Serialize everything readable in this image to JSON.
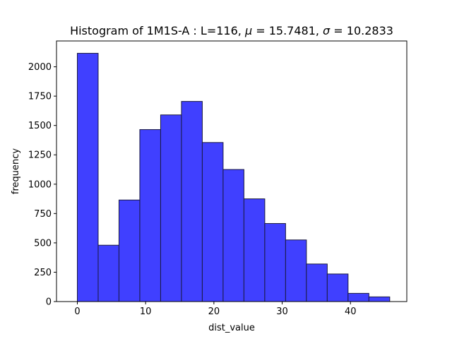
{
  "chart_data": {
    "type": "bar",
    "title_prefix": "Histogram of 1M1S-A : L=116, ",
    "title_mu": "μ",
    "title_mu_value": " = 15.7481, ",
    "title_sigma": "σ",
    "title_sigma_value": " = 10.2833",
    "xlabel": "dist_value",
    "ylabel": "frequency",
    "xlim": [
      -3.05,
      48.25
    ],
    "ylim": [
      0,
      2220
    ],
    "x_ticks": [
      0,
      10,
      20,
      30,
      40
    ],
    "x_tick_labels": [
      "0",
      "10",
      "20",
      "30",
      "40"
    ],
    "y_ticks": [
      0,
      250,
      500,
      750,
      1000,
      1250,
      1500,
      1750,
      2000
    ],
    "y_tick_labels": [
      "0",
      "250",
      "500",
      "750",
      "1000",
      "1250",
      "1500",
      "1750",
      "2000"
    ],
    "bin_edges": [
      0,
      3.05,
      6.1,
      9.15,
      12.2,
      15.25,
      18.3,
      21.35,
      24.4,
      27.45,
      30.5,
      33.55,
      36.6,
      39.65,
      42.7,
      45.75
    ],
    "values": [
      2115,
      480,
      865,
      1465,
      1590,
      1705,
      1355,
      1125,
      875,
      665,
      525,
      320,
      235,
      70,
      40
    ],
    "bar_color": "#4040ff",
    "edge_color": "#1a1a40",
    "grid": false,
    "legend": "none"
  }
}
